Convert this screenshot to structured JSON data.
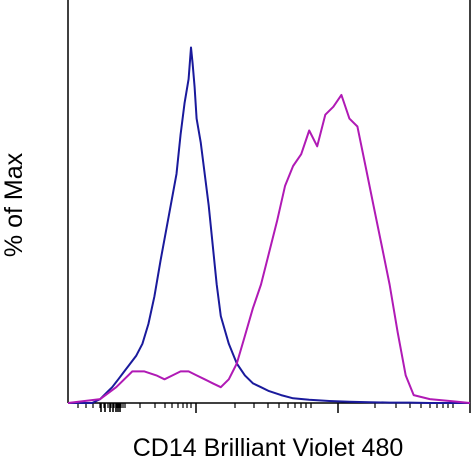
{
  "chart_data": {
    "type": "line",
    "title": "",
    "xlabel": "CD14 Brilliant Violet 480",
    "ylabel": "% of Max",
    "x_scale": "log",
    "xlim": [
      0,
      100
    ],
    "ylim": [
      0,
      100
    ],
    "grid": false,
    "legend": "none",
    "series": [
      {
        "color": "#1a1a9c",
        "x": [
          0,
          6,
          8,
          10,
          11,
          12.5,
          14,
          15.5,
          17,
          18.5,
          20,
          21.5,
          23,
          25,
          27,
          28,
          29,
          30,
          30.6,
          31,
          31.5,
          32,
          33,
          34,
          35,
          36,
          37,
          38,
          40,
          42,
          44,
          46,
          48,
          50,
          53,
          56,
          60,
          65,
          70,
          75,
          80,
          85,
          90,
          95,
          100
        ],
        "y": [
          0,
          0,
          1,
          3,
          4,
          6,
          8,
          10,
          12,
          15,
          20,
          27,
          36,
          47,
          58,
          68,
          76,
          82,
          90,
          86,
          80,
          72,
          66,
          58,
          50,
          40,
          30,
          22,
          15,
          10,
          7,
          5,
          4,
          3,
          2,
          1.2,
          0.8,
          0.5,
          0.3,
          0.2,
          0.1,
          0.1,
          0,
          0,
          0
        ]
      },
      {
        "color": "#b01ab5",
        "x": [
          0,
          8,
          12,
          16,
          19,
          22,
          24,
          26,
          28,
          30,
          32,
          34,
          36,
          38,
          40,
          42,
          44,
          46,
          48,
          50,
          52,
          54,
          56,
          58,
          60,
          62,
          64,
          66,
          68,
          70,
          72,
          74,
          76,
          78,
          80,
          82,
          84,
          86,
          90,
          95,
          100
        ],
        "y": [
          0,
          1,
          4,
          8,
          8,
          7,
          6,
          7,
          8,
          8,
          7,
          6,
          5,
          4,
          6,
          10,
          17,
          24,
          30,
          38,
          46,
          55,
          60,
          63,
          69,
          65,
          73,
          75,
          78,
          72,
          70,
          60,
          50,
          40,
          30,
          18,
          7,
          2,
          1,
          0.5,
          0
        ]
      }
    ]
  }
}
